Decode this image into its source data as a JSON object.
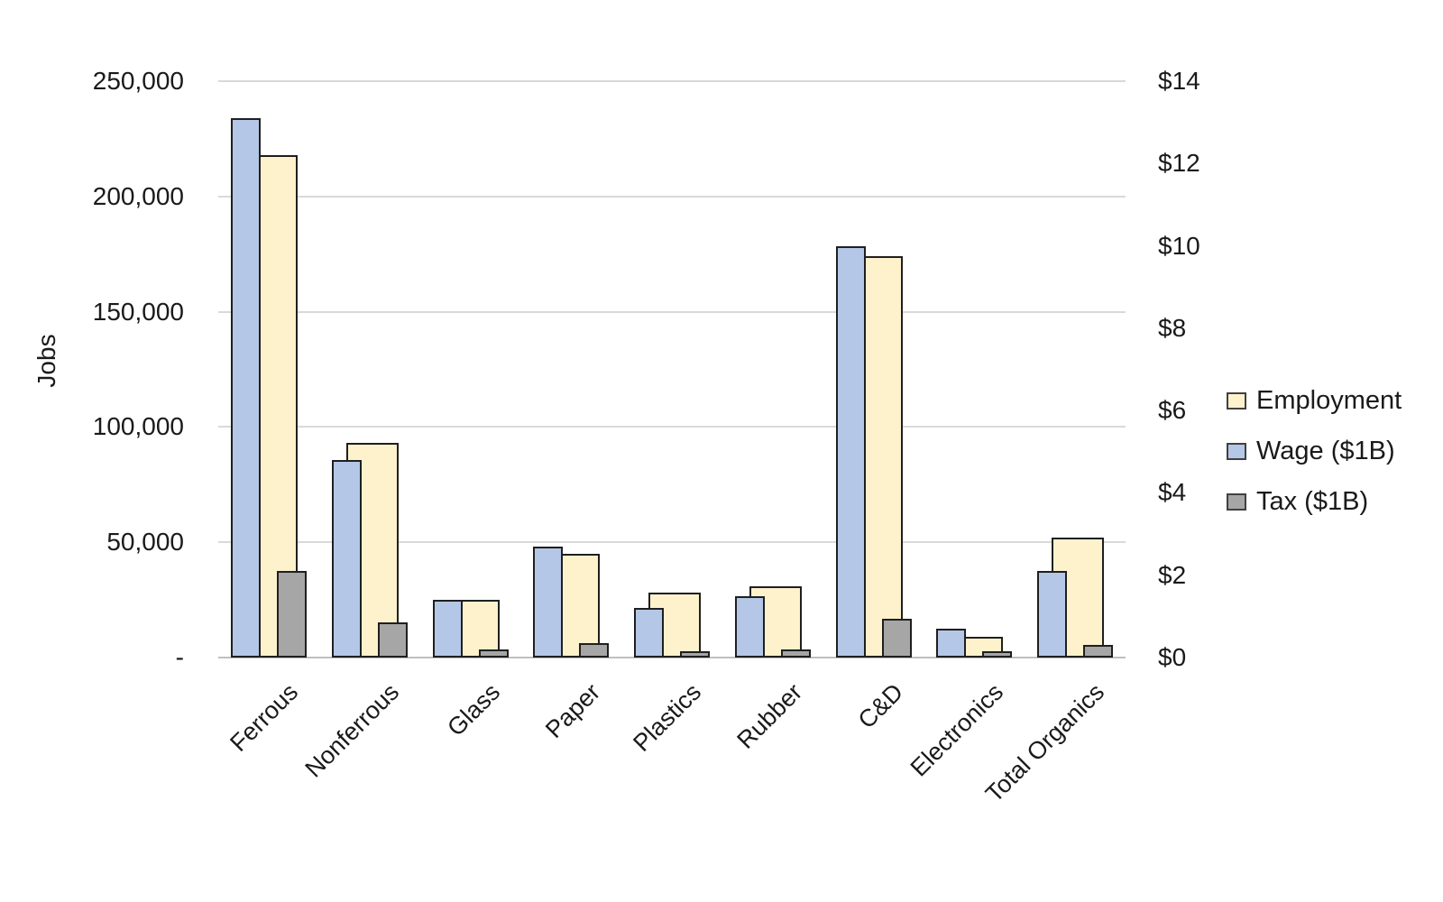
{
  "chart_data": {
    "type": "bar",
    "title": "",
    "categories": [
      "Ferrous",
      "Nonferrous",
      "Glass",
      "Paper",
      "Plastics",
      "Rubber",
      "C&D",
      "Electronics",
      "Total Organics"
    ],
    "series": [
      {
        "name": "Employment",
        "axis": "left",
        "unit": "jobs",
        "color": "#FDF2CC",
        "values": [
          218000,
          93000,
          25000,
          45000,
          28000,
          31000,
          174000,
          9000,
          52000
        ]
      },
      {
        "name": "Wage ($1B)",
        "axis": "right",
        "unit": "$B",
        "color": "#B4C7E7",
        "values": [
          13.1,
          4.8,
          1.4,
          2.7,
          1.2,
          1.5,
          10.0,
          0.7,
          2.1
        ]
      },
      {
        "name": "Tax ($1B)",
        "axis": "right",
        "unit": "$B",
        "color": "#A6A6A6",
        "values": [
          2.1,
          0.85,
          0.2,
          0.35,
          0.15,
          0.2,
          0.95,
          0.15,
          0.3
        ]
      }
    ],
    "left_axis": {
      "label": "Jobs",
      "min": 0,
      "max": 250000,
      "tick_labels": [
        "250,000",
        "200,000",
        "150,000",
        "100,000",
        "50,000",
        "-"
      ],
      "tick_values": [
        250000,
        200000,
        150000,
        100000,
        50000,
        0
      ]
    },
    "right_axis": {
      "label": "",
      "min": 0,
      "max": 14,
      "tick_labels": [
        "$14",
        "$12",
        "$10",
        "$8",
        "$6",
        "$4",
        "$2",
        "$0"
      ],
      "tick_values": [
        14,
        12,
        10,
        8,
        6,
        4,
        2,
        0
      ]
    },
    "legend": {
      "position": "right",
      "entries": [
        "Employment",
        "Wage ($1B)",
        "Tax ($1B)"
      ]
    },
    "grid": true
  },
  "colors": {
    "employment_fill": "#FDF2CC",
    "wage_fill": "#B4C7E7",
    "tax_fill": "#A6A6A6",
    "bar_border": "#1F1F1F",
    "gridline": "#D9D9D9",
    "axis_line": "#BFBFBF",
    "text": "#1A1A1A"
  }
}
